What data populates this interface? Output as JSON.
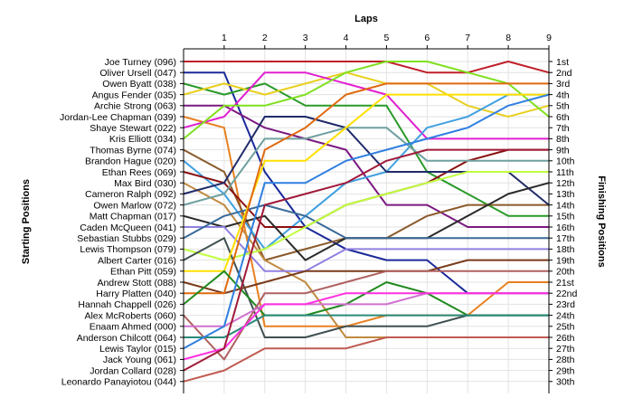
{
  "chart_data": {
    "type": "line",
    "title": "",
    "xlabel": "Laps",
    "ylabel_left": "Starting Positions",
    "ylabel_right": "Finishing Positions",
    "x": [
      0,
      1,
      2,
      3,
      4,
      5,
      6,
      7,
      8,
      9
    ],
    "x_tick_labels": [
      "1",
      "2",
      "3",
      "4",
      "5",
      "6",
      "7",
      "8",
      "9"
    ],
    "ylim": [
      1,
      30
    ],
    "grid": true,
    "starting_labels": [
      "Joe Turney (096)",
      "Oliver Ursell (047)",
      "Owen Byatt (038)",
      "Angus Fender (035)",
      "Archie Strong (063)",
      "Jordan-Lee Chapman (039)",
      "Shaye Stewart (022)",
      "Kris Elliott (034)",
      "Thomas Byrne (074)",
      "Brandon Hague (020)",
      "Ethan Rees (069)",
      "Max Bird (030)",
      "Cameron Ralph (092)",
      "Owen Marlow (072)",
      "Matt Chapman (017)",
      "Caden McQueen (041)",
      "Sebastian Stubbs (029)",
      "Lewis Thompson (079)",
      "Albert Carter (016)",
      "Ethan Pitt (059)",
      "Andrew Stott (088)",
      "Harry Platten (040)",
      "Hannah Chappell (026)",
      "Alex McRoberts (060)",
      "Enaam Ahmed (000)",
      "Anderson Chilcott (064)",
      "Lewis Taylor (015)",
      "Jack Young (061)",
      "Jordan Collard (028)",
      "Leonardo Panayiotou (044)"
    ],
    "finishing_labels": [
      "1st",
      "2nd",
      "3rd",
      "4th",
      "5th",
      "6th",
      "7th",
      "8th",
      "9th",
      "10th",
      "11th",
      "12th",
      "13th",
      "14th",
      "15th",
      "16th",
      "17th",
      "18th",
      "19th",
      "20th",
      "21st",
      "22nd",
      "23rd",
      "24th",
      "25th",
      "26th",
      "27th",
      "28th",
      "29th",
      "30th"
    ],
    "series": [
      {
        "color": "#c0202a",
        "values": [
          1,
          1,
          1,
          1,
          1,
          1,
          2,
          2,
          1,
          2
        ]
      },
      {
        "color": "#1a2a9a",
        "values": [
          2,
          2,
          11,
          16,
          18,
          19,
          19,
          22,
          22,
          22
        ]
      },
      {
        "color": "#2a9a2a",
        "values": [
          3,
          4,
          3,
          5,
          5,
          5,
          11,
          13,
          15,
          15
        ]
      },
      {
        "color": "#e8d020",
        "values": [
          4,
          3,
          4,
          3,
          2,
          3,
          3,
          5,
          6,
          5
        ]
      },
      {
        "color": "#7a1a80",
        "values": [
          5,
          5,
          7,
          8,
          9,
          14,
          14,
          16,
          16,
          16
        ]
      },
      {
        "color": "#e88020",
        "values": [
          6,
          7,
          25,
          25,
          25,
          24,
          24,
          24,
          21,
          21
        ]
      },
      {
        "color": "#e020d0",
        "values": [
          7,
          6,
          2,
          2,
          3,
          4,
          8,
          8,
          8,
          8
        ]
      },
      {
        "color": "#80e020",
        "values": [
          8,
          5,
          5,
          4,
          2,
          1,
          1,
          2,
          3,
          6
        ]
      },
      {
        "color": "#8b5a2b",
        "values": [
          9,
          11,
          19,
          18,
          17,
          17,
          15,
          14,
          14,
          14
        ]
      },
      {
        "color": "#40a0e0",
        "values": [
          10,
          13,
          18,
          15,
          12,
          11,
          7,
          6,
          4,
          4
        ]
      },
      {
        "color": "#8a1010",
        "values": [
          11,
          12,
          16,
          16,
          14,
          13,
          12,
          10,
          9,
          9
        ]
      },
      {
        "color": "#c08a40",
        "values": [
          12,
          14,
          19,
          21,
          26,
          26,
          26,
          26,
          26,
          26
        ]
      },
      {
        "color": "#202a6a",
        "values": [
          13,
          12,
          6,
          6,
          7,
          11,
          11,
          11,
          11,
          14
        ]
      },
      {
        "color": "#70a0a0",
        "values": [
          14,
          13,
          8,
          8,
          7,
          7,
          10,
          10,
          10,
          10
        ]
      },
      {
        "color": "#2a2a2a",
        "values": [
          15,
          16,
          15,
          19,
          17,
          17,
          17,
          15,
          13,
          12
        ]
      },
      {
        "color": "#9080e0",
        "values": [
          16,
          16,
          20,
          20,
          18,
          18,
          18,
          18,
          18,
          18
        ]
      },
      {
        "color": "#3a6a9a",
        "values": [
          17,
          15,
          14,
          15,
          17,
          17,
          17,
          17,
          17,
          17
        ]
      },
      {
        "color": "#c0ff40",
        "values": [
          18,
          19,
          18,
          16,
          14,
          13,
          12,
          11,
          11,
          11
        ]
      },
      {
        "color": "#405050",
        "values": [
          19,
          17,
          26,
          26,
          25,
          25,
          25,
          24,
          24,
          24
        ]
      },
      {
        "color": "#ffe000",
        "values": [
          20,
          20,
          10,
          10,
          7,
          4,
          4,
          4,
          4,
          4
        ]
      },
      {
        "color": "#7a3a1a",
        "values": [
          21,
          22,
          21,
          20,
          20,
          20,
          20,
          19,
          19,
          19
        ]
      },
      {
        "color": "#e06a10",
        "values": [
          22,
          22,
          9,
          7,
          4,
          3,
          3,
          3,
          3,
          3
        ]
      },
      {
        "color": "#208a20",
        "values": [
          23,
          20,
          24,
          24,
          23,
          21,
          22,
          24,
          24,
          24
        ]
      },
      {
        "color": "#b06060",
        "values": [
          24,
          28,
          22,
          22,
          21,
          20,
          20,
          20,
          20,
          20
        ]
      },
      {
        "color": "#d070d0",
        "values": [
          25,
          25,
          23,
          23,
          23,
          23,
          22,
          22,
          22,
          22
        ]
      },
      {
        "color": "#2a8a7a",
        "values": [
          26,
          26,
          24,
          24,
          24,
          24,
          24,
          24,
          24,
          24
        ]
      },
      {
        "color": "#3080e0",
        "values": [
          27,
          25,
          12,
          12,
          10,
          9,
          8,
          7,
          5,
          4
        ]
      },
      {
        "color": "#ff30e0",
        "values": [
          28,
          27,
          23,
          23,
          22,
          22,
          22,
          22,
          22,
          22
        ]
      },
      {
        "color": "#a01a3a",
        "values": [
          29,
          27,
          14,
          13,
          12,
          10,
          9,
          9,
          9,
          9
        ]
      },
      {
        "color": "#c05a50",
        "values": [
          30,
          29,
          27,
          27,
          27,
          26,
          26,
          26,
          26,
          26
        ]
      }
    ]
  }
}
